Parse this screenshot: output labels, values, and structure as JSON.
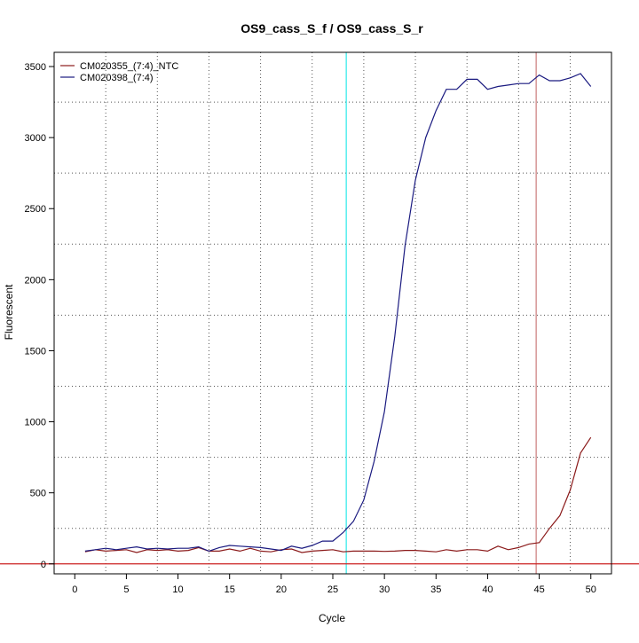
{
  "chart_data": {
    "type": "line",
    "title": "OS9_cass_S_f / OS9_cass_S_r",
    "xlabel": "Cycle",
    "ylabel": "Fluorescent",
    "xlim": [
      -2,
      52
    ],
    "ylim": [
      -70,
      3600
    ],
    "xticks": [
      0,
      5,
      10,
      15,
      20,
      25,
      30,
      35,
      40,
      45,
      50
    ],
    "yticks": [
      0,
      500,
      1000,
      1500,
      2000,
      2500,
      3000,
      3500
    ],
    "x_gridlines": [
      3,
      8,
      13,
      18,
      23,
      28,
      33,
      38,
      43,
      48
    ],
    "y_gridlines": [
      250,
      750,
      1250,
      1750,
      2250,
      2750,
      3250
    ],
    "grid": true,
    "legend_position": "top-left",
    "threshold_line": {
      "y": 0,
      "color": "#cc2222"
    },
    "vertical_markers": [
      {
        "x": 26.3,
        "color": "#00e5e5"
      },
      {
        "x": 44.7,
        "color": "#c06060"
      }
    ],
    "x": [
      1,
      2,
      3,
      4,
      5,
      6,
      7,
      8,
      9,
      10,
      11,
      12,
      13,
      14,
      15,
      16,
      17,
      18,
      19,
      20,
      21,
      22,
      23,
      24,
      25,
      26,
      27,
      28,
      29,
      30,
      31,
      32,
      33,
      34,
      35,
      36,
      37,
      38,
      39,
      40,
      41,
      42,
      43,
      44,
      45,
      46,
      47,
      48,
      49,
      50
    ],
    "series": [
      {
        "name": "CM020355_(7:4)_NTC",
        "color": "#8b1a1a",
        "values": [
          85,
          100,
          90,
          95,
          100,
          80,
          100,
          95,
          100,
          90,
          95,
          115,
          90,
          90,
          105,
          90,
          110,
          90,
          85,
          100,
          105,
          80,
          90,
          95,
          100,
          85,
          90,
          90,
          90,
          88,
          90,
          95,
          95,
          90,
          85,
          100,
          90,
          100,
          100,
          90,
          125,
          100,
          115,
          140,
          150,
          250,
          340,
          520,
          780,
          890
        ]
      },
      {
        "name": "CM020398_(7:4)",
        "color": "#1a1a80",
        "values": [
          90,
          100,
          110,
          100,
          110,
          120,
          105,
          110,
          105,
          110,
          110,
          120,
          90,
          115,
          130,
          125,
          120,
          115,
          105,
          95,
          125,
          110,
          130,
          160,
          160,
          220,
          300,
          450,
          720,
          1070,
          1600,
          2240,
          2700,
          3000,
          3190,
          3340,
          3340,
          3410,
          3410,
          3340,
          3360,
          3370,
          3380,
          3380,
          3440,
          3400,
          3400,
          3420,
          3450,
          3360
        ]
      }
    ]
  }
}
